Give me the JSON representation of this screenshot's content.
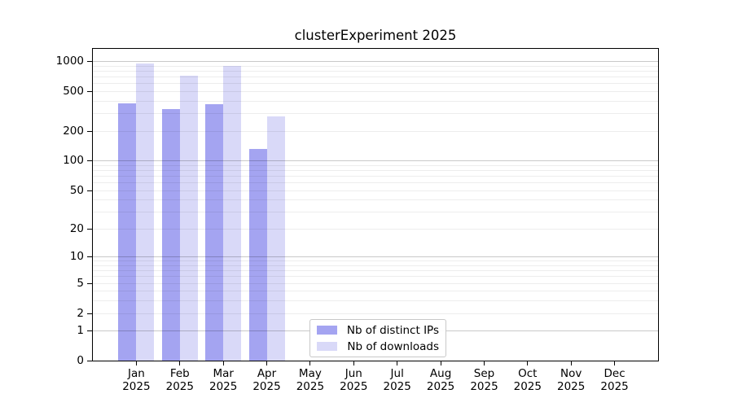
{
  "title": "clusterExperiment 2025",
  "chart_data": {
    "type": "bar",
    "title": "clusterExperiment 2025",
    "year": "2025",
    "categories": [
      "Jan",
      "Feb",
      "Mar",
      "Apr",
      "May",
      "Jun",
      "Jul",
      "Aug",
      "Sep",
      "Oct",
      "Nov",
      "Dec"
    ],
    "series": [
      {
        "name": "Nb of distinct IPs",
        "color": "#a4a4f1",
        "values": [
          375,
          330,
          370,
          130,
          null,
          null,
          null,
          null,
          null,
          null,
          null,
          null
        ]
      },
      {
        "name": "Nb of downloads",
        "color": "#d9d9f8",
        "values": [
          940,
          720,
          895,
          280,
          null,
          null,
          null,
          null,
          null,
          null,
          null,
          null
        ]
      }
    ],
    "y_scale": "log1p",
    "y_ticks": [
      0,
      1,
      2,
      5,
      10,
      20,
      50,
      100,
      200,
      500,
      1000
    ],
    "y_major_gridlines": [
      1,
      10,
      100,
      1000
    ],
    "y_minor_gridlines": [
      2,
      3,
      4,
      5,
      6,
      7,
      8,
      9,
      20,
      30,
      40,
      50,
      60,
      70,
      80,
      90,
      200,
      300,
      400,
      500,
      600,
      700,
      800,
      900
    ],
    "ylim": [
      0,
      1320
    ],
    "legend": {
      "position": "lower-center",
      "entries": [
        "Nb of distinct IPs",
        "Nb of downloads"
      ]
    },
    "colors": {
      "grid_major": "#c9c9c9",
      "grid_minor": "#ededed",
      "axis": "#000000"
    }
  }
}
